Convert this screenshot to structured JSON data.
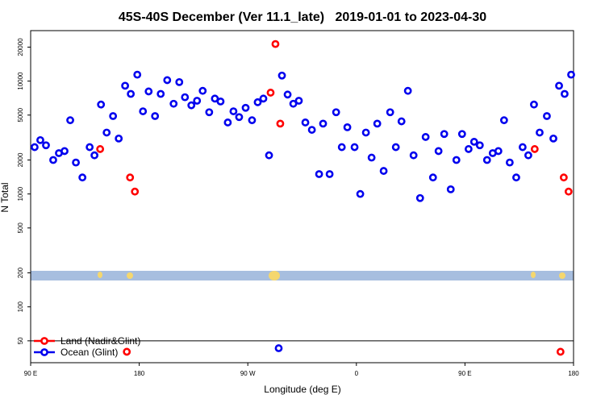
{
  "chart_data": {
    "type": "scatter",
    "title": "45S-40S December (Ver 11.1_late)   2019-01-01 to 2023-04-30",
    "x_label": "Longitude (deg E)",
    "y_label": "N Total",
    "log_y": true,
    "legend": "lower left",
    "hline": 50,
    "xlim": [
      90,
      540
    ],
    "xticks": [
      {
        "value": 90,
        "label": "90 E"
      },
      180,
      {
        "value": 270,
        "label": "90 W"
      },
      {
        "value": 360,
        "label": "0"
      },
      {
        "value": 450,
        "label": "90 E"
      },
      {
        "value": 540,
        "label": "180"
      }
    ],
    "ylim": [
      32,
      28000
    ],
    "yticks": [
      50,
      100,
      200,
      500,
      1000,
      2000,
      5000,
      10000,
      20000
    ],
    "series": [
      {
        "name": "Land (Nadir&Glint)",
        "color": "#ff0000",
        "x": [
          147.6,
          172.4,
          176.4,
          288.9,
          292.9,
          296.9,
          169.7,
          507.8,
          531.9,
          535.9,
          529.2
        ],
        "values": [
          2500,
          1400,
          1050,
          7900,
          21300,
          4200,
          40,
          2500,
          1400,
          1050,
          40
        ]
      },
      {
        "name": "Ocean (Glint)",
        "color": "#0000ee",
        "x": [
          93.3,
          98.0,
          102.7,
          108.7,
          113.4,
          118.1,
          122.8,
          127.5,
          132.9,
          138.9,
          142.9,
          148.3,
          153.0,
          158.3,
          163.0,
          168.3,
          173.0,
          178.4,
          183.1,
          187.8,
          193.1,
          197.8,
          203.2,
          208.5,
          213.2,
          217.9,
          223.2,
          227.9,
          232.6,
          238.0,
          242.7,
          247.4,
          253.4,
          258.1,
          262.8,
          268.2,
          273.5,
          278.2,
          282.9,
          287.6,
          295.6,
          298.3,
          303.0,
          307.7,
          312.3,
          317.7,
          323.1,
          329.1,
          332.4,
          337.8,
          343.2,
          347.9,
          352.5,
          358.5,
          363.2,
          367.9,
          372.6,
          377.3,
          382.6,
          388.0,
          392.7,
          397.4,
          402.7,
          407.4,
          412.8,
          417.4,
          423.5,
          428.1,
          432.8,
          438.2,
          442.9,
          447.6,
          453.0,
          457.6,
          462.3,
          468.3,
          473.0,
          477.7,
          482.4,
          487.1,
          492.5,
          497.8,
          502.5,
          507.2,
          511.9,
          517.9,
          523.3,
          528.0,
          532.6,
          538.0
        ],
        "values": [
          2600,
          3000,
          2700,
          2000,
          2300,
          2400,
          4500,
          1900,
          1400,
          2600,
          2200,
          6200,
          3500,
          4900,
          3100,
          9100,
          7700,
          11400,
          5400,
          8100,
          4900,
          7700,
          10200,
          6300,
          9800,
          7200,
          6100,
          6700,
          8200,
          5300,
          7000,
          6600,
          4300,
          5400,
          4800,
          5800,
          4500,
          6500,
          7000,
          2200,
          43,
          11200,
          7600,
          6300,
          6700,
          4300,
          3700,
          1500,
          4200,
          1500,
          5300,
          2600,
          3900,
          2600,
          1000,
          3500,
          2100,
          4200,
          1600,
          5300,
          2600,
          4400,
          8200,
          2200,
          920,
          3200,
          1400,
          2400,
          3400,
          1100,
          2000,
          3400,
          2500,
          2900,
          2700,
          2000,
          2300,
          2400,
          4500,
          1900,
          1400,
          2600,
          2200,
          6200,
          3500,
          4900,
          3100,
          9100,
          7700,
          11400
        ]
      }
    ]
  }
}
